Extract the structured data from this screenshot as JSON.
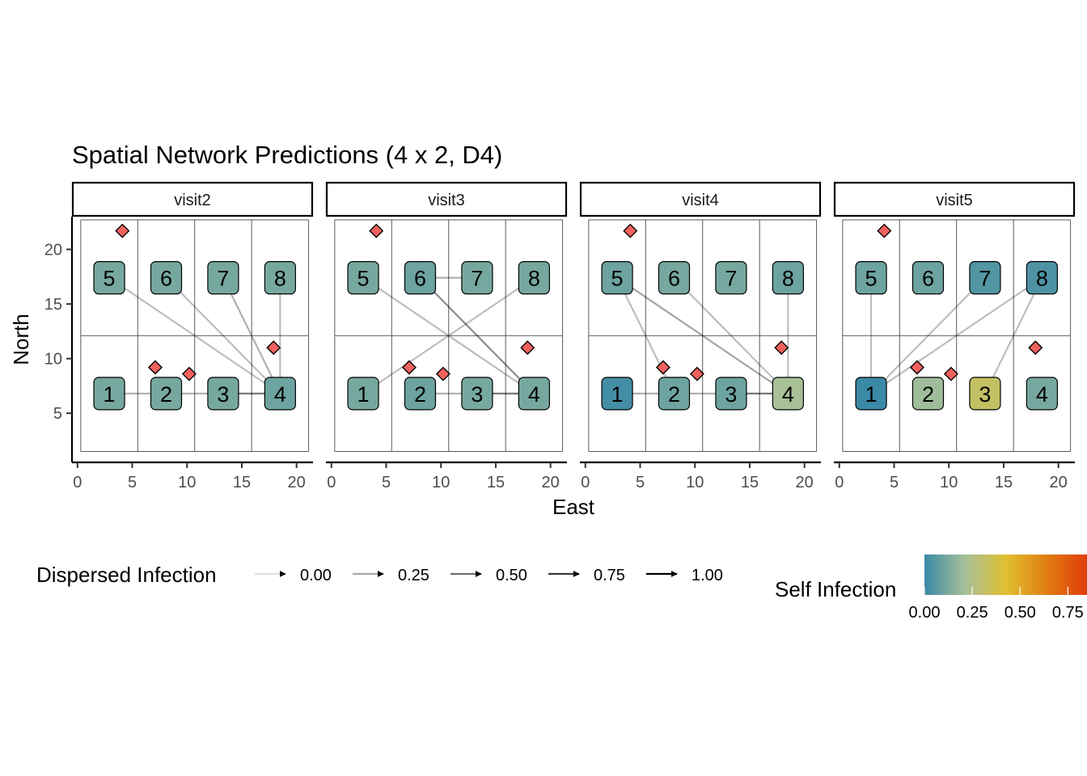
{
  "chart_data": {
    "type": "network",
    "title": "Spatial Network Predictions (4 x 2, D4)",
    "xlabel": "East",
    "ylabel": "North",
    "xlim": [
      -0.5,
      21.5
    ],
    "ylim": [
      0.5,
      23
    ],
    "xticks": [
      0,
      5,
      10,
      15,
      20
    ],
    "yticks": [
      5,
      10,
      15,
      20
    ],
    "grid_cells": {
      "x_breaks": [
        0.3,
        5.5,
        10.7,
        15.9,
        21.1
      ],
      "y_breaks": [
        1.5,
        12.1,
        22.7
      ]
    },
    "node_positions": [
      {
        "id": "1",
        "x": 2.9,
        "y": 6.8
      },
      {
        "id": "2",
        "x": 8.1,
        "y": 6.8
      },
      {
        "id": "3",
        "x": 13.3,
        "y": 6.8
      },
      {
        "id": "4",
        "x": 18.5,
        "y": 6.8
      },
      {
        "id": "5",
        "x": 2.9,
        "y": 17.4
      },
      {
        "id": "6",
        "x": 8.1,
        "y": 17.4
      },
      {
        "id": "7",
        "x": 13.3,
        "y": 17.4
      },
      {
        "id": "8",
        "x": 18.5,
        "y": 17.4
      }
    ],
    "diamond_points": [
      {
        "x": 4.1,
        "y": 21.7
      },
      {
        "x": 7.1,
        "y": 9.2
      },
      {
        "x": 10.2,
        "y": 8.6
      },
      {
        "x": 17.9,
        "y": 11.0
      }
    ],
    "panels": [
      {
        "strip": "visit2",
        "self_infection": [
          0.12,
          0.12,
          0.12,
          0.1,
          0.12,
          0.12,
          0.12,
          0.12
        ],
        "edges": [
          {
            "from": "4",
            "to": "1",
            "weight": 0.25
          },
          {
            "from": "4",
            "to": "3",
            "weight": 0.25
          },
          {
            "from": "4",
            "to": "5",
            "weight": 0.2
          },
          {
            "from": "4",
            "to": "6",
            "weight": 0.2
          },
          {
            "from": "4",
            "to": "7",
            "weight": 0.25
          },
          {
            "from": "4",
            "to": "8",
            "weight": 0.2
          }
        ]
      },
      {
        "strip": "visit3",
        "self_infection": [
          0.12,
          0.1,
          0.12,
          0.12,
          0.12,
          0.1,
          0.12,
          0.12
        ],
        "edges": [
          {
            "from": "4",
            "to": "2",
            "weight": 0.25
          },
          {
            "from": "4",
            "to": "3",
            "weight": 0.25
          },
          {
            "from": "5",
            "to": "4",
            "weight": 0.2
          },
          {
            "from": "6",
            "to": "4",
            "weight": 0.4
          },
          {
            "from": "6",
            "to": "7",
            "weight": 0.25
          },
          {
            "from": "1",
            "to": "8",
            "weight": 0.2
          }
        ]
      },
      {
        "strip": "visit4",
        "self_infection": [
          0.02,
          0.1,
          0.1,
          0.22,
          0.1,
          0.12,
          0.12,
          0.1
        ],
        "edges": [
          {
            "from": "4",
            "to": "1",
            "weight": 0.25
          },
          {
            "from": "4",
            "to": "3",
            "weight": 0.25
          },
          {
            "from": "4",
            "to": "5",
            "weight": 0.3
          },
          {
            "from": "4",
            "to": "6",
            "weight": 0.2
          },
          {
            "from": "4",
            "to": "8",
            "weight": 0.2
          },
          {
            "from": "5",
            "to": "2",
            "weight": 0.2
          }
        ]
      },
      {
        "strip": "visit5",
        "self_infection": [
          0.0,
          0.2,
          0.32,
          0.12,
          0.1,
          0.1,
          0.05,
          0.04
        ],
        "edges": [
          {
            "from": "1",
            "to": "5",
            "weight": 0.2
          },
          {
            "from": "1",
            "to": "7",
            "weight": 0.2
          },
          {
            "from": "1",
            "to": "8",
            "weight": 0.2
          },
          {
            "from": "3",
            "to": "8",
            "weight": 0.2
          }
        ]
      }
    ],
    "legend_dispersed": {
      "title": "Dispersed Infection",
      "levels": [
        0,
        0.25,
        0.5,
        0.75,
        1
      ],
      "labels": [
        "0.00",
        "0.25",
        "0.50",
        "0.75",
        "1.00"
      ]
    },
    "legend_self": {
      "title": "Self Infection",
      "range": [
        0,
        0.85
      ],
      "ticks": [
        0,
        0.25,
        0.5,
        0.75
      ],
      "tick_labels": [
        "0.00",
        "0.25",
        "0.50",
        "0.75"
      ],
      "colors": [
        "#3A89A6",
        "#A6C09A",
        "#E0C030",
        "#E07E10",
        "#E03C0A"
      ]
    },
    "colors": {
      "diamond_fill": "#F0625E",
      "cell_line": "#595959",
      "edge": "#000000"
    }
  }
}
